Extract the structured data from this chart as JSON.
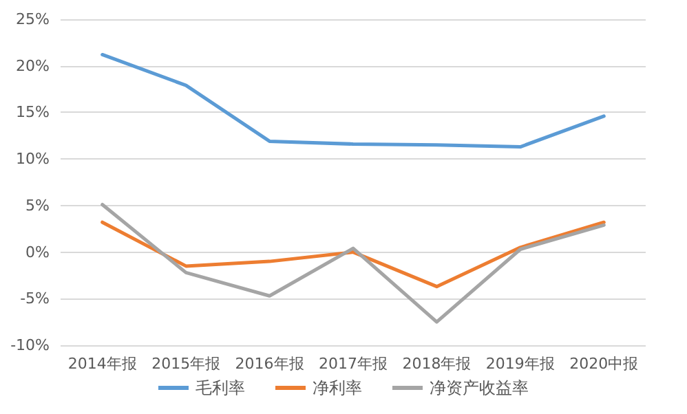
{
  "chart_data": {
    "type": "line",
    "categories": [
      "2014年报",
      "2015年报",
      "2016年报",
      "2017年报",
      "2018年报",
      "2019年报",
      "2020中报"
    ],
    "series": [
      {
        "name": "毛利率",
        "color": "#5b9bd5",
        "values": [
          21.2,
          17.9,
          11.9,
          11.6,
          11.5,
          11.3,
          14.6
        ]
      },
      {
        "name": "净利率",
        "color": "#ed7d31",
        "values": [
          3.2,
          -1.5,
          -1.0,
          0.0,
          -3.7,
          0.5,
          3.2
        ]
      },
      {
        "name": "净资产收益率",
        "color": "#a5a5a5",
        "values": [
          5.1,
          -2.2,
          -4.7,
          0.4,
          -7.5,
          0.3,
          2.9
        ]
      }
    ],
    "ylim": [
      -10,
      25
    ],
    "yticks": [
      {
        "value": -10,
        "label": "-10%"
      },
      {
        "value": -5,
        "label": "-5%"
      },
      {
        "value": 0,
        "label": "0%"
      },
      {
        "value": 5,
        "label": "5%"
      },
      {
        "value": 10,
        "label": "10%"
      },
      {
        "value": 15,
        "label": "15%"
      },
      {
        "value": 20,
        "label": "20%"
      },
      {
        "value": 25,
        "label": "25%"
      }
    ],
    "grid": "y",
    "legend": "bottom",
    "marker": "none",
    "line_style": "solid"
  }
}
